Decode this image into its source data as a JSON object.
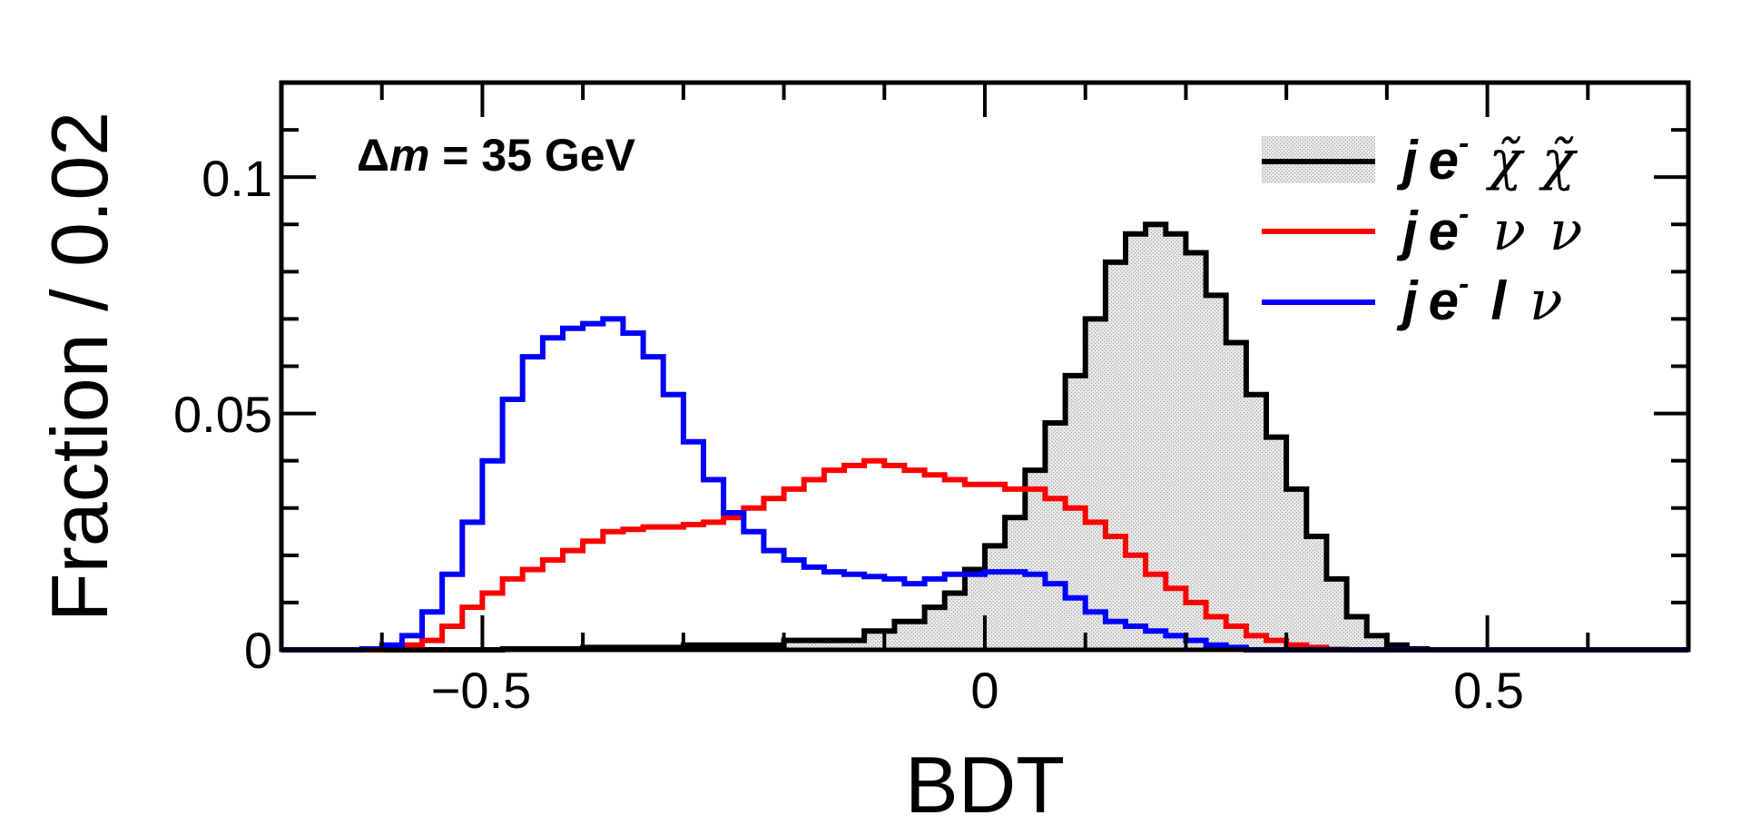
{
  "chart_data": {
    "type": "step-histogram",
    "annotation": {
      "prefix": "Δ",
      "var": "m",
      "text": " = 35 GeV"
    },
    "xlabel": "BDT",
    "ylabel": "Fraction / 0.02",
    "xlim": [
      -0.7,
      0.7
    ],
    "ylim": [
      0,
      0.12
    ],
    "xticks": [
      -0.5,
      0,
      0.5
    ],
    "xtick_labels": [
      "−0.5",
      "0",
      "0.5"
    ],
    "yticks": [
      0,
      0.05,
      0.1
    ],
    "ytick_labels": [
      "0",
      "0.05",
      "0.1"
    ],
    "bin_width": 0.02,
    "series": [
      {
        "name": "signal",
        "legend": {
          "j": "j",
          "e": "e",
          "sup": "-",
          "p1": "χ̃",
          "p2": "χ̃"
        },
        "color": "#000000",
        "fill": "#d9d9d9",
        "points": [
          [
            -0.7,
            0.0
          ],
          [
            -0.48,
            0.0002
          ],
          [
            -0.4,
            0.0005
          ],
          [
            -0.3,
            0.001
          ],
          [
            -0.2,
            0.002
          ],
          [
            -0.12,
            0.004
          ],
          [
            -0.09,
            0.006
          ],
          [
            -0.06,
            0.009
          ],
          [
            -0.04,
            0.012
          ],
          [
            -0.02,
            0.017
          ],
          [
            0.0,
            0.022
          ],
          [
            0.02,
            0.028
          ],
          [
            0.04,
            0.038
          ],
          [
            0.06,
            0.048
          ],
          [
            0.08,
            0.058
          ],
          [
            0.1,
            0.07
          ],
          [
            0.12,
            0.082
          ],
          [
            0.14,
            0.088
          ],
          [
            0.16,
            0.09
          ],
          [
            0.18,
            0.088
          ],
          [
            0.2,
            0.084
          ],
          [
            0.22,
            0.075
          ],
          [
            0.24,
            0.065
          ],
          [
            0.26,
            0.054
          ],
          [
            0.28,
            0.045
          ],
          [
            0.3,
            0.034
          ],
          [
            0.32,
            0.024
          ],
          [
            0.34,
            0.015
          ],
          [
            0.36,
            0.007
          ],
          [
            0.38,
            0.003
          ],
          [
            0.4,
            0.001
          ],
          [
            0.42,
            0.0002
          ],
          [
            0.44,
            0.0
          ]
        ]
      },
      {
        "name": "background_nunu",
        "legend": {
          "j": "j",
          "e": "e",
          "sup": "-",
          "p1": "ν",
          "p2": "ν"
        },
        "color": "#ff0000",
        "points": [
          [
            -0.7,
            0.0
          ],
          [
            -0.6,
            0.0002
          ],
          [
            -0.58,
            0.001
          ],
          [
            -0.56,
            0.002
          ],
          [
            -0.54,
            0.005
          ],
          [
            -0.52,
            0.009
          ],
          [
            -0.5,
            0.012
          ],
          [
            -0.48,
            0.015
          ],
          [
            -0.46,
            0.017
          ],
          [
            -0.44,
            0.019
          ],
          [
            -0.42,
            0.021
          ],
          [
            -0.4,
            0.023
          ],
          [
            -0.38,
            0.025
          ],
          [
            -0.36,
            0.0255
          ],
          [
            -0.34,
            0.026
          ],
          [
            -0.32,
            0.026
          ],
          [
            -0.3,
            0.0265
          ],
          [
            -0.28,
            0.027
          ],
          [
            -0.26,
            0.028
          ],
          [
            -0.24,
            0.03
          ],
          [
            -0.22,
            0.032
          ],
          [
            -0.2,
            0.034
          ],
          [
            -0.18,
            0.036
          ],
          [
            -0.16,
            0.038
          ],
          [
            -0.14,
            0.039
          ],
          [
            -0.12,
            0.04
          ],
          [
            -0.1,
            0.039
          ],
          [
            -0.08,
            0.038
          ],
          [
            -0.06,
            0.037
          ],
          [
            -0.04,
            0.036
          ],
          [
            -0.02,
            0.035
          ],
          [
            0.0,
            0.035
          ],
          [
            0.02,
            0.034
          ],
          [
            0.04,
            0.034
          ],
          [
            0.06,
            0.032
          ],
          [
            0.08,
            0.03
          ],
          [
            0.1,
            0.027
          ],
          [
            0.12,
            0.024
          ],
          [
            0.14,
            0.02
          ],
          [
            0.16,
            0.016
          ],
          [
            0.18,
            0.013
          ],
          [
            0.2,
            0.01
          ],
          [
            0.22,
            0.007
          ],
          [
            0.24,
            0.005
          ],
          [
            0.26,
            0.003
          ],
          [
            0.28,
            0.002
          ],
          [
            0.3,
            0.001
          ],
          [
            0.32,
            0.0005
          ],
          [
            0.34,
            0.0001
          ],
          [
            0.36,
            0.0
          ]
        ]
      },
      {
        "name": "background_lnu",
        "legend": {
          "j": "j",
          "e": "e",
          "sup": "-",
          "p1": "l",
          "p2": "ν"
        },
        "color": "#0000ff",
        "points": [
          [
            -0.7,
            0.0
          ],
          [
            -0.62,
            0.0002
          ],
          [
            -0.6,
            0.001
          ],
          [
            -0.58,
            0.003
          ],
          [
            -0.56,
            0.008
          ],
          [
            -0.54,
            0.016
          ],
          [
            -0.52,
            0.027
          ],
          [
            -0.5,
            0.04
          ],
          [
            -0.48,
            0.053
          ],
          [
            -0.46,
            0.062
          ],
          [
            -0.44,
            0.066
          ],
          [
            -0.42,
            0.068
          ],
          [
            -0.4,
            0.069
          ],
          [
            -0.38,
            0.07
          ],
          [
            -0.36,
            0.067
          ],
          [
            -0.34,
            0.062
          ],
          [
            -0.32,
            0.054
          ],
          [
            -0.3,
            0.044
          ],
          [
            -0.28,
            0.036
          ],
          [
            -0.26,
            0.029
          ],
          [
            -0.24,
            0.025
          ],
          [
            -0.22,
            0.021
          ],
          [
            -0.2,
            0.019
          ],
          [
            -0.18,
            0.0175
          ],
          [
            -0.16,
            0.0165
          ],
          [
            -0.14,
            0.016
          ],
          [
            -0.12,
            0.0155
          ],
          [
            -0.1,
            0.015
          ],
          [
            -0.08,
            0.014
          ],
          [
            -0.06,
            0.015
          ],
          [
            -0.04,
            0.016
          ],
          [
            -0.02,
            0.016
          ],
          [
            0.0,
            0.0165
          ],
          [
            0.02,
            0.0165
          ],
          [
            0.04,
            0.016
          ],
          [
            0.06,
            0.014
          ],
          [
            0.08,
            0.011
          ],
          [
            0.1,
            0.008
          ],
          [
            0.12,
            0.006
          ],
          [
            0.14,
            0.005
          ],
          [
            0.16,
            0.004
          ],
          [
            0.18,
            0.003
          ],
          [
            0.2,
            0.002
          ],
          [
            0.22,
            0.001
          ],
          [
            0.24,
            0.0005
          ],
          [
            0.26,
            0.0
          ]
        ]
      }
    ]
  }
}
